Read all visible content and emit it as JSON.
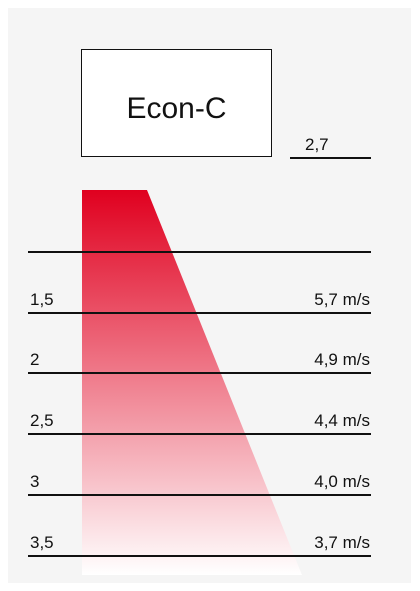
{
  "device": {
    "label": "Econ-C"
  },
  "mounting_height_label": "2,7",
  "levels": [
    {
      "distance": "",
      "velocity": ""
    },
    {
      "distance": "1,5",
      "velocity": "5,7 m/s"
    },
    {
      "distance": "2",
      "velocity": "4,9 m/s"
    },
    {
      "distance": "2,5",
      "velocity": "4,4 m/s"
    },
    {
      "distance": "3",
      "velocity": "4,0 m/s"
    },
    {
      "distance": "3,5",
      "velocity": "3,7 m/s"
    }
  ],
  "colors": {
    "jet_top": "#e0001f",
    "jet_bottom": "#ffffff",
    "background": "#f5f5f5",
    "lines": "#111111"
  }
}
